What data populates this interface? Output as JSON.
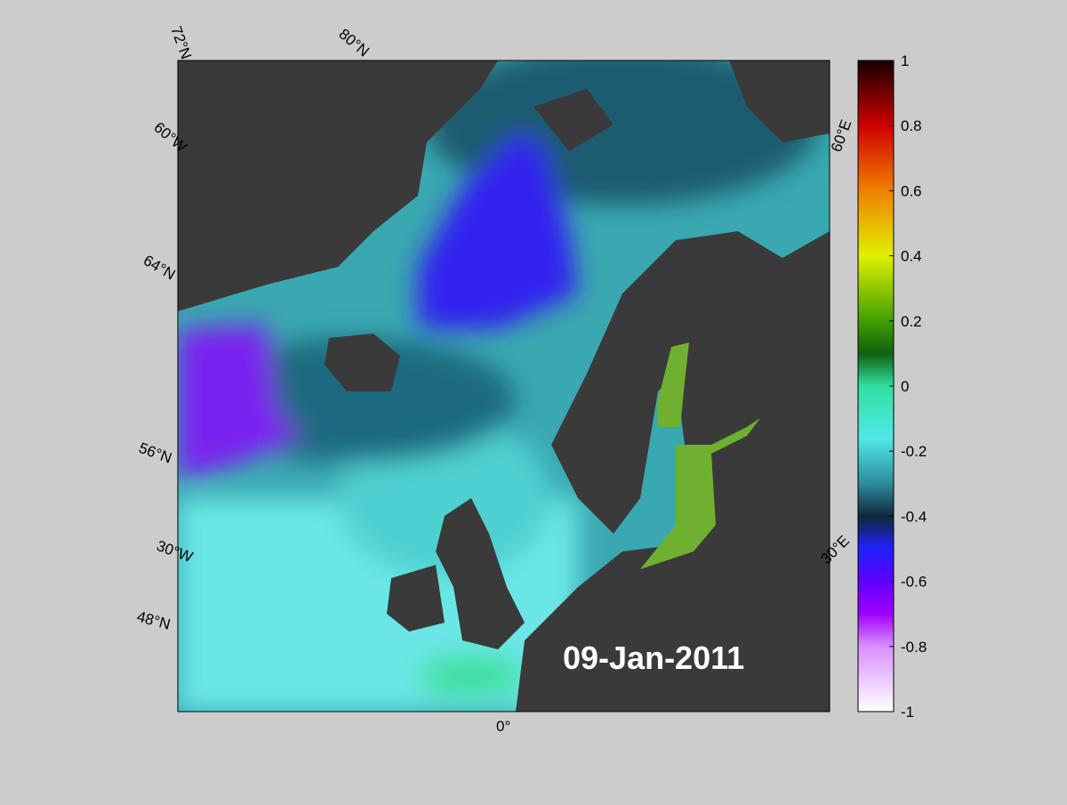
{
  "map": {
    "graticule_labels": [
      "72°N",
      "80°N",
      "60°W",
      "64°N",
      "56°N",
      "30°W",
      "48°N",
      "0°",
      "60°E",
      "30°E"
    ],
    "date": "09-Jan-2011"
  },
  "colorbar": {
    "lim": [
      -1,
      1
    ],
    "ticks": [
      -1,
      -0.8,
      -0.6,
      -0.4,
      -0.2,
      0,
      0.2,
      0.4,
      0.6,
      0.8,
      1
    ]
  }
}
